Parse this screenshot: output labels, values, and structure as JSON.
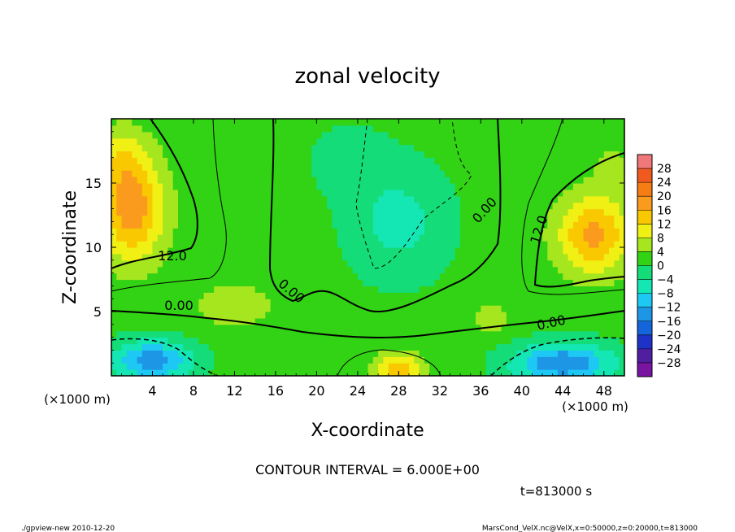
{
  "chart_data": {
    "type": "heatmap",
    "title": "zonal velocity",
    "xlabel": "X-coordinate",
    "ylabel": "Z-coordinate",
    "x_units": "(×1000 m)",
    "y_units": "(×1000 m)",
    "xlim": [
      0,
      50
    ],
    "ylim": [
      0,
      20
    ],
    "x_ticks": [
      4,
      8,
      12,
      16,
      20,
      24,
      28,
      32,
      36,
      40,
      44,
      48
    ],
    "y_ticks": [
      5,
      10,
      15
    ],
    "colorbar": {
      "levels": [
        28,
        24,
        20,
        16,
        12,
        8,
        4,
        0,
        -4,
        -8,
        -12,
        -16,
        -20,
        -24,
        -28
      ],
      "label_texts": [
        "28",
        "24",
        "20",
        "16",
        "12",
        "8",
        "4",
        "0",
        "−4",
        "−8",
        "−12",
        "−16",
        "−20",
        "−24",
        "−28"
      ],
      "colors": [
        "#f07878",
        "#f05a1e",
        "#f57d14",
        "#fa9b1e",
        "#fac800",
        "#f0f014",
        "#a5e61e",
        "#32d214",
        "#14dc78",
        "#14e6b4",
        "#1ec8f5",
        "#1e96e6",
        "#1464dc",
        "#1e32c8",
        "#501ea0",
        "#7814a0"
      ]
    },
    "contour_labels": [
      "12.0",
      "12.0",
      "0.00",
      "0.00",
      "0.00",
      "0.00"
    ],
    "contour_interval_text": "CONTOUR INTERVAL = 6.000E+00",
    "time_text": "t=813000 s",
    "footer_left": "./gpview-new  2010-12-20",
    "footer_right": "MarsCond_VelX.nc@VelX,x=0:50000,z=0:20000,t=813000",
    "field": {
      "background": 1.5,
      "blobs": [
        {
          "x": 2,
          "z": 13,
          "sx": 3.2,
          "sz": 4.0,
          "amp": 17
        },
        {
          "x": 1,
          "z": 17,
          "sx": 2.5,
          "sz": 2.5,
          "amp": 6
        },
        {
          "x": 47,
          "z": 11,
          "sx": 3.5,
          "sz": 3.0,
          "amp": 16
        },
        {
          "x": 49,
          "z": 16,
          "sx": 2.0,
          "sz": 2.0,
          "amp": 4
        },
        {
          "x": 28,
          "z": 12,
          "sx": 5.0,
          "sz": 4.5,
          "amp": -7
        },
        {
          "x": 23,
          "z": 17,
          "sx": 4.0,
          "sz": 3.0,
          "amp": -3
        },
        {
          "x": 4,
          "z": 1.2,
          "sx": 4.0,
          "sz": 1.6,
          "amp": -16
        },
        {
          "x": 44,
          "z": 1.0,
          "sx": 5.0,
          "sz": 1.6,
          "amp": -17
        },
        {
          "x": 28,
          "z": 0.5,
          "sx": 2.2,
          "sz": 1.3,
          "amp": 13
        },
        {
          "x": 12,
          "z": 5.5,
          "sx": 4.0,
          "sz": 2.0,
          "amp": 5
        },
        {
          "x": 37,
          "z": 4.5,
          "sx": 2.0,
          "sz": 1.5,
          "amp": 4
        }
      ]
    }
  }
}
